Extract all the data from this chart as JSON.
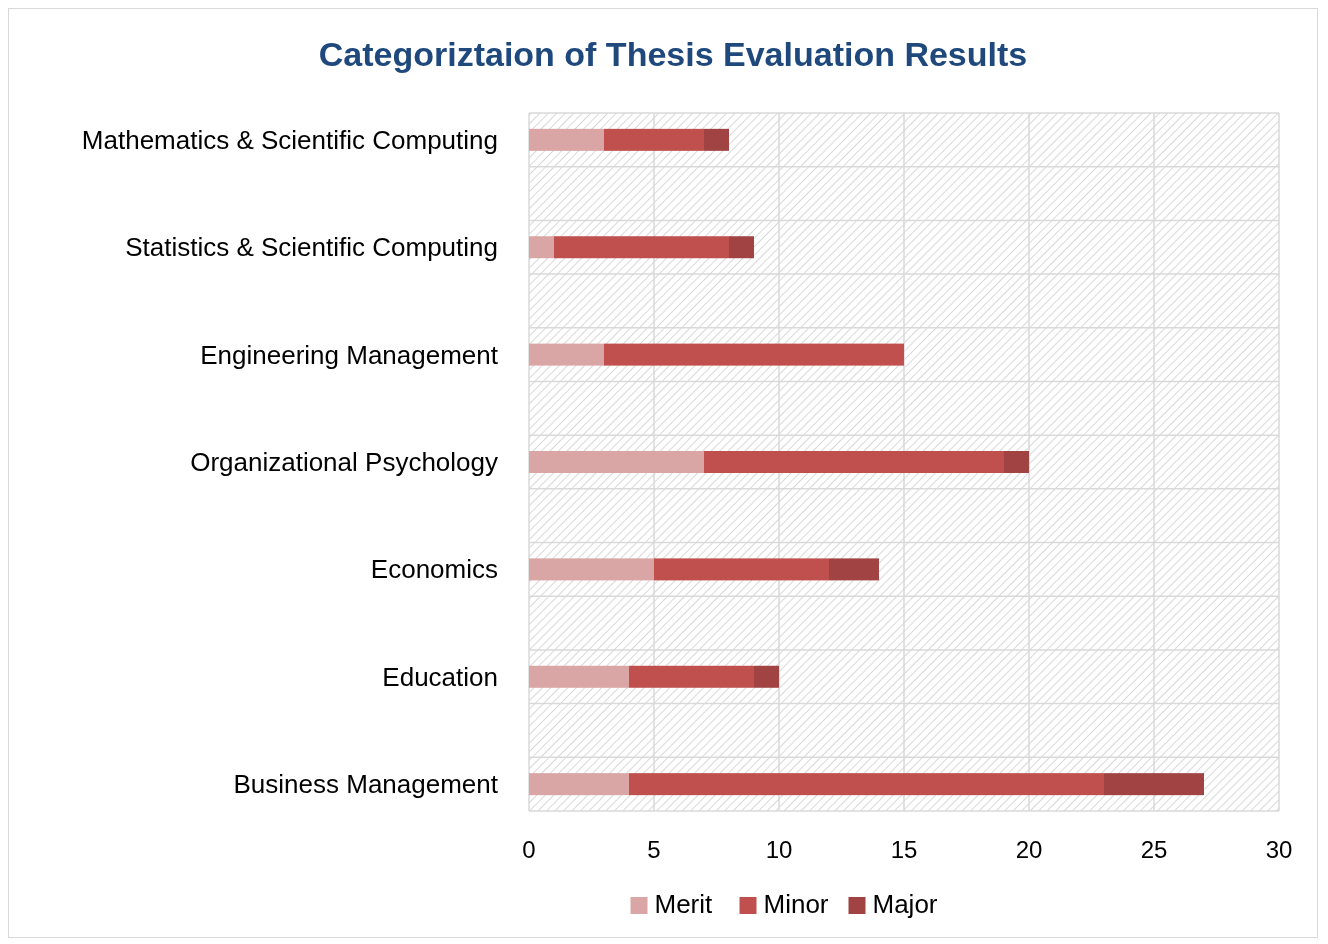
{
  "chart_data": {
    "type": "bar",
    "title": "Categoriztaion of Thesis Evaluation Results",
    "orientation": "horizontal",
    "stacked": true,
    "categories": [
      "Mathematics & Scientific Computing",
      "Statistics & Scientific Computing",
      "Engineering Management",
      "Organizational Psychology",
      "Economics",
      "Education",
      "Business Management"
    ],
    "series": [
      {
        "name": "Merit",
        "color": "#d9a5a5",
        "values": [
          3,
          1,
          3,
          7,
          5,
          4,
          4
        ]
      },
      {
        "name": "Minor",
        "color": "#c0504d",
        "values": [
          4,
          7,
          12,
          12,
          7,
          5,
          19
        ]
      },
      {
        "name": "Major",
        "color": "#a04342",
        "values": [
          1,
          1,
          0,
          1,
          2,
          1,
          4
        ]
      }
    ],
    "xlim": [
      0,
      30
    ],
    "xticks": [
      0,
      5,
      10,
      15,
      20,
      25,
      30
    ],
    "grid": true,
    "legend": "bottom"
  }
}
